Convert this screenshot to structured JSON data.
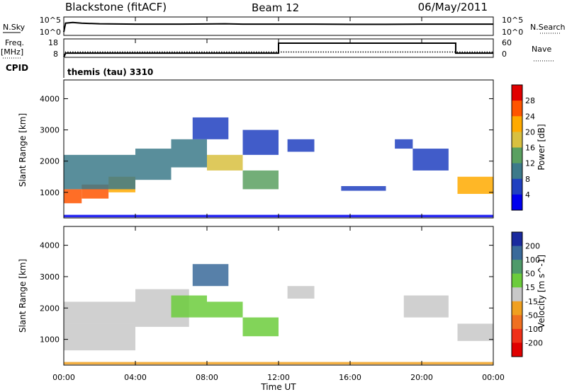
{
  "header": {
    "station": "Blackstone (fitACF)",
    "beam": "Beam 12",
    "date": "06/May/2011"
  },
  "panels": {
    "sky": {
      "left_label": "N.Sky",
      "left_ticks": [
        "10^5",
        "10^0"
      ],
      "right_ticks": [
        "10^5",
        "10^0"
      ],
      "right_label": "N.Search"
    },
    "freq": {
      "left_label_1": "Freq.",
      "left_label_2": "[MHz]",
      "left_ticks": [
        "18",
        "8"
      ],
      "right_ticks": [
        "60",
        "0"
      ],
      "right_label": "Nave"
    },
    "cpid": {
      "label": "CPID",
      "text": "themis (tau) 3310"
    }
  },
  "colorbars": {
    "power": {
      "title": "Power [dB]",
      "ticks": [
        "28",
        "24",
        "20",
        "16",
        "12",
        "8",
        "4"
      ],
      "colors": [
        "#e00000",
        "#ff5500",
        "#ffaa00",
        "#d8c040",
        "#5aa060",
        "#3c7a8a",
        "#2040c0",
        "#0000ee"
      ]
    },
    "velocity": {
      "title": "Velocity [m s^-1]",
      "ticks": [
        "200",
        "100",
        "50",
        "15",
        "-15",
        "-50",
        "-100",
        "-200"
      ],
      "colors": [
        "#1a2a9e",
        "#3a6a9a",
        "#4f9a6a",
        "#6ccc3c",
        "#c8c8c8",
        "#f0a020",
        "#f07020",
        "#f03018",
        "#e00000"
      ]
    }
  },
  "chart_data": [
    {
      "type": "line",
      "name": "sky-noise",
      "series": [
        {
          "name": "N.Sky",
          "style": "solid",
          "x": [
            0.0,
            0.1,
            0.5,
            1.0,
            2.0,
            4.0,
            6.0,
            8.0,
            9.0,
            10.0,
            12.0,
            14.0,
            16.0,
            18.0,
            20.0,
            22.0,
            24.0
          ],
          "y": [
            1.0,
            3.6,
            3.8,
            3.6,
            3.4,
            3.3,
            3.3,
            3.35,
            3.4,
            3.3,
            3.3,
            3.3,
            3.25,
            3.25,
            3.3,
            3.3,
            3.3
          ]
        }
      ],
      "xlim": [
        0,
        24
      ],
      "ylim": [
        0,
        5
      ],
      "ylabel": "N.Sky"
    },
    {
      "type": "line",
      "name": "frequency",
      "series": [
        {
          "name": "Freq.",
          "style": "dotted",
          "x": [
            0.0,
            0.1,
            24.0
          ],
          "y": [
            8.0,
            11.0,
            11.0
          ]
        },
        {
          "name": "Nave",
          "style": "solid",
          "x": [
            0.0,
            0.1,
            12.0,
            12.0,
            21.9,
            21.9,
            24.0
          ],
          "y": [
            0,
            14,
            14,
            48,
            48,
            14,
            14
          ]
        }
      ],
      "xlim": [
        0,
        24
      ],
      "ylim_freq": [
        8,
        18
      ],
      "ylim_nave": [
        0,
        60
      ]
    },
    {
      "type": "heatmap",
      "name": "power",
      "x_ticks": [
        "00:00",
        "04:00",
        "08:00",
        "12:00",
        "16:00",
        "20:00",
        "00:00"
      ],
      "y_ticks": [
        "1000",
        "2000",
        "3000",
        "4000"
      ],
      "ylabel": "Slant Range [km]",
      "xlim": [
        0,
        24
      ],
      "ylim": [
        180,
        4600
      ],
      "regions": [
        {
          "t0": 0.0,
          "t1": 1.0,
          "r0": 650,
          "r1": 1100,
          "v": 27
        },
        {
          "t0": 1.0,
          "t1": 2.5,
          "r0": 800,
          "r1": 1250,
          "v": 25
        },
        {
          "t0": 2.5,
          "t1": 4.0,
          "r0": 1000,
          "r1": 1500,
          "v": 22
        },
        {
          "t0": 0.0,
          "t1": 4.0,
          "r0": 1100,
          "r1": 2200,
          "v": 9
        },
        {
          "t0": 4.0,
          "t1": 6.0,
          "r0": 1400,
          "r1": 2400,
          "v": 12
        },
        {
          "t0": 6.0,
          "t1": 8.0,
          "r0": 1800,
          "r1": 2700,
          "v": 10
        },
        {
          "t0": 7.2,
          "t1": 9.2,
          "r0": 2700,
          "r1": 3400,
          "v": 6
        },
        {
          "t0": 8.0,
          "t1": 10.0,
          "r0": 1700,
          "r1": 2200,
          "v": 17
        },
        {
          "t0": 10.0,
          "t1": 12.0,
          "r0": 1100,
          "r1": 1700,
          "v": 16
        },
        {
          "t0": 10.0,
          "t1": 12.0,
          "r0": 2200,
          "r1": 3000,
          "v": 5
        },
        {
          "t0": 12.5,
          "t1": 14.0,
          "r0": 2300,
          "r1": 2700,
          "v": 5
        },
        {
          "t0": 15.5,
          "t1": 18.0,
          "r0": 1050,
          "r1": 1200,
          "v": 6
        },
        {
          "t0": 18.5,
          "t1": 19.5,
          "r0": 2400,
          "r1": 2700,
          "v": 5
        },
        {
          "t0": 19.5,
          "t1": 21.5,
          "r0": 1700,
          "r1": 2400,
          "v": 8
        },
        {
          "t0": 22.0,
          "t1": 24.0,
          "r0": 950,
          "r1": 1500,
          "v": 21
        },
        {
          "t0": 0.0,
          "t1": 24.0,
          "r0": 200,
          "r1": 280,
          "v": 4
        }
      ]
    },
    {
      "type": "heatmap",
      "name": "velocity",
      "x_ticks": [
        "00:00",
        "04:00",
        "08:00",
        "12:00",
        "16:00",
        "20:00",
        "00:00"
      ],
      "y_ticks": [
        "1000",
        "2000",
        "3000",
        "4000"
      ],
      "ylabel": "Slant Range [km]",
      "xlabel": "Time UT",
      "xlim": [
        0,
        24
      ],
      "ylim": [
        180,
        4600
      ],
      "regions": [
        {
          "t0": 0.0,
          "t1": 4.0,
          "r0": 650,
          "r1": 1500,
          "v": 0
        },
        {
          "t0": 0.0,
          "t1": 4.0,
          "r0": 1500,
          "r1": 2200,
          "v": 5
        },
        {
          "t0": 4.0,
          "t1": 7.0,
          "r0": 1400,
          "r1": 2600,
          "v": -5
        },
        {
          "t0": 6.0,
          "t1": 8.0,
          "r0": 1700,
          "r1": 2400,
          "v": 30
        },
        {
          "t0": 7.2,
          "t1": 9.2,
          "r0": 2700,
          "r1": 3400,
          "v": 150
        },
        {
          "t0": 8.0,
          "t1": 10.0,
          "r0": 1700,
          "r1": 2200,
          "v": 20
        },
        {
          "t0": 10.0,
          "t1": 12.0,
          "r0": 1100,
          "r1": 1700,
          "v": 20
        },
        {
          "t0": 12.5,
          "t1": 14.0,
          "r0": 2300,
          "r1": 2700,
          "v": 0
        },
        {
          "t0": 19.0,
          "t1": 21.5,
          "r0": 1700,
          "r1": 2400,
          "v": 0
        },
        {
          "t0": 22.0,
          "t1": 24.0,
          "r0": 950,
          "r1": 1500,
          "v": 0
        },
        {
          "t0": 0.0,
          "t1": 24.0,
          "r0": 200,
          "r1": 280,
          "v": -20
        }
      ]
    }
  ],
  "axes": {
    "x_ticks": [
      "00:00",
      "04:00",
      "08:00",
      "12:00",
      "16:00",
      "20:00",
      "00:00"
    ],
    "y_ticks": [
      "1000",
      "2000",
      "3000",
      "4000"
    ],
    "ylabel": "Slant Range [km]",
    "xlabel": "Time UT"
  }
}
